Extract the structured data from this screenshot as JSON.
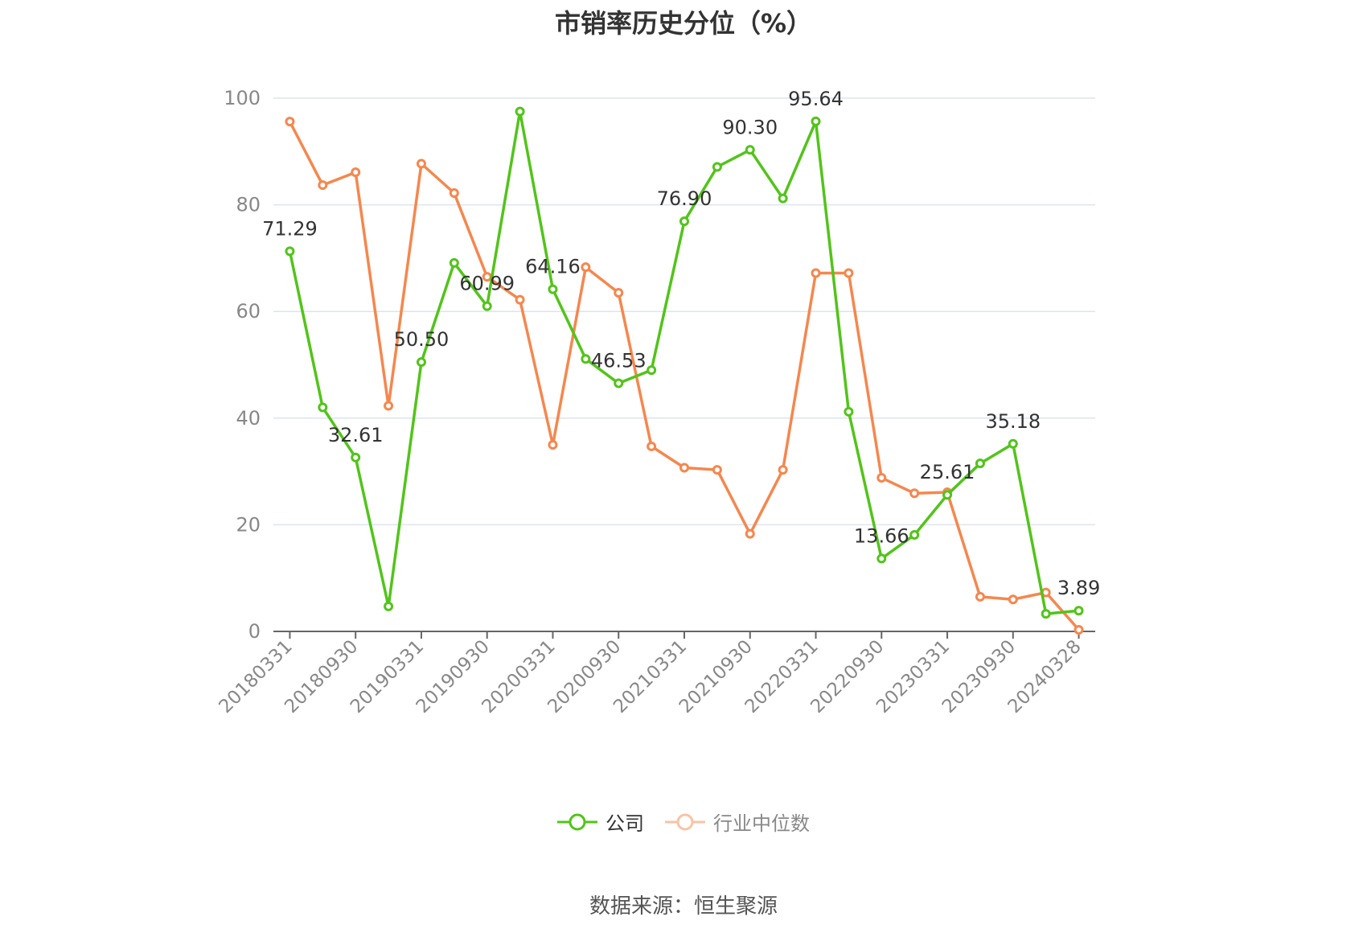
{
  "chart_data": {
    "type": "line",
    "title": "市销率历史分位（%）",
    "xlabel": "",
    "ylabel": "",
    "ylim": [
      0,
      100
    ],
    "yticks": [
      0,
      20,
      40,
      60,
      80,
      100
    ],
    "grid": true,
    "legend_position": "bottom",
    "x": [
      "20180331",
      "20180630",
      "20180930",
      "20181231",
      "20190331",
      "20190630",
      "20190930",
      "20191231",
      "20200331",
      "20200630",
      "20200930",
      "20201231",
      "20210331",
      "20210630",
      "20210930",
      "20211231",
      "20220331",
      "20220630",
      "20220930",
      "20221231",
      "20230331",
      "20230630",
      "20230930",
      "20231231",
      "20240328"
    ],
    "xtick_labels": [
      "20180331",
      "20180930",
      "20190331",
      "20190930",
      "20200331",
      "20200930",
      "20210331",
      "20210930",
      "20220331",
      "20220930",
      "20230331",
      "20230930",
      "20240328"
    ],
    "series": [
      {
        "name": "公司",
        "color": "#52c41a",
        "values": [
          71.29,
          42.0,
          32.61,
          4.7,
          50.5,
          69.1,
          60.99,
          97.5,
          64.16,
          51.1,
          46.53,
          49.0,
          76.9,
          87.1,
          90.3,
          81.2,
          95.64,
          41.2,
          13.66,
          18.1,
          25.61,
          31.5,
          35.18,
          3.3,
          3.89
        ],
        "labels": [
          "71.29",
          "",
          "32.61",
          "",
          "50.50",
          "",
          "60.99",
          "",
          "64.16",
          "",
          "46.53",
          "",
          "76.90",
          "",
          "90.30",
          "",
          "95.64",
          "",
          "13.66",
          "",
          "25.61",
          "",
          "35.18",
          "",
          "3.89"
        ]
      },
      {
        "name": "行业中位数",
        "color": "#f5874e",
        "values": [
          95.6,
          83.7,
          86.1,
          42.3,
          87.7,
          82.2,
          66.5,
          62.2,
          35.0,
          68.3,
          63.5,
          34.7,
          30.7,
          30.3,
          18.3,
          30.3,
          67.2,
          67.2,
          28.8,
          25.9,
          26.1,
          6.5,
          6.0,
          7.3,
          0.3
        ]
      }
    ]
  },
  "legend": [
    {
      "name": "公司",
      "color": "#52c41a",
      "text_color": "#333333"
    },
    {
      "name": "行业中位数",
      "color": "#f5874e",
      "text_color": "#888888"
    }
  ],
  "source": "数据来源：恒生聚源"
}
